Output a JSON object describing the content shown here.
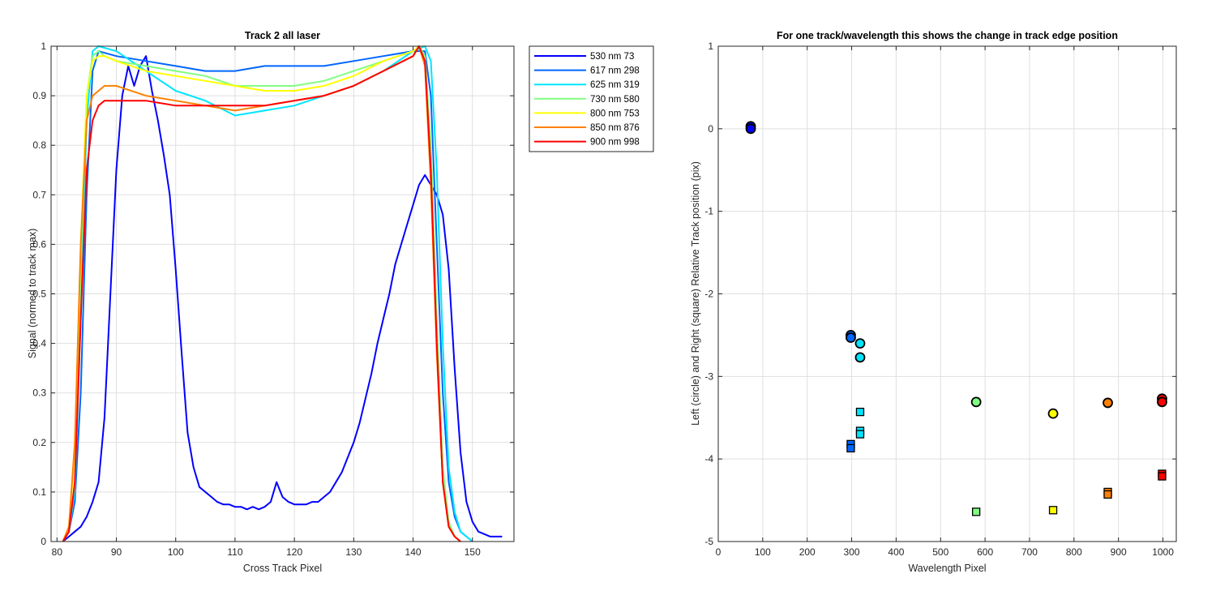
{
  "chart_data": [
    {
      "type": "line",
      "title": "Track 2  all laser",
      "xlabel": "Cross Track Pixel",
      "ylabel": "Signal (normed to track max)",
      "xlim": [
        79,
        157
      ],
      "ylim": [
        0,
        1
      ],
      "xticks": [
        80,
        90,
        100,
        110,
        120,
        130,
        140,
        150
      ],
      "yticks": [
        0,
        0.1,
        0.2,
        0.3,
        0.4,
        0.5,
        0.6,
        0.7,
        0.8,
        0.9,
        1
      ],
      "grid": true,
      "legend_position": "outside-top-right",
      "series": [
        {
          "name": "530 nm 73",
          "color": "#0000ff",
          "x": [
            81,
            82,
            83,
            84,
            85,
            86,
            87,
            88,
            89,
            90,
            91,
            92,
            93,
            94,
            95,
            96,
            97,
            98,
            99,
            100,
            101,
            102,
            103,
            104,
            105,
            106,
            107,
            108,
            109,
            110,
            111,
            112,
            113,
            114,
            115,
            116,
            117,
            118,
            119,
            120,
            121,
            122,
            123,
            124,
            125,
            126,
            127,
            128,
            129,
            130,
            131,
            132,
            133,
            134,
            135,
            136,
            137,
            138,
            139,
            140,
            141,
            142,
            143,
            144,
            145,
            146,
            147,
            148,
            149,
            150,
            151,
            152,
            153,
            154,
            155
          ],
          "y": [
            0.0,
            0.01,
            0.02,
            0.03,
            0.05,
            0.08,
            0.12,
            0.25,
            0.5,
            0.75,
            0.9,
            0.96,
            0.92,
            0.96,
            0.98,
            0.91,
            0.85,
            0.78,
            0.7,
            0.55,
            0.38,
            0.22,
            0.15,
            0.11,
            0.1,
            0.09,
            0.08,
            0.075,
            0.075,
            0.07,
            0.07,
            0.065,
            0.07,
            0.065,
            0.07,
            0.08,
            0.12,
            0.09,
            0.08,
            0.075,
            0.075,
            0.075,
            0.08,
            0.08,
            0.09,
            0.1,
            0.12,
            0.14,
            0.17,
            0.2,
            0.24,
            0.29,
            0.34,
            0.4,
            0.45,
            0.5,
            0.56,
            0.6,
            0.64,
            0.68,
            0.72,
            0.74,
            0.72,
            0.7,
            0.66,
            0.55,
            0.35,
            0.18,
            0.08,
            0.04,
            0.02,
            0.015,
            0.01,
            0.01,
            0.01
          ]
        },
        {
          "name": "617 nm 298",
          "color": "#0066ff",
          "x": [
            81,
            82,
            83,
            84,
            85,
            86,
            87,
            90,
            95,
            100,
            105,
            110,
            115,
            120,
            125,
            130,
            135,
            140,
            142,
            143,
            144,
            145,
            146,
            147,
            148,
            149,
            150
          ],
          "y": [
            0.0,
            0.02,
            0.08,
            0.3,
            0.7,
            0.95,
            0.99,
            0.98,
            0.97,
            0.96,
            0.95,
            0.95,
            0.96,
            0.96,
            0.96,
            0.97,
            0.98,
            0.99,
            0.99,
            0.9,
            0.6,
            0.3,
            0.12,
            0.05,
            0.02,
            0.01,
            0.0
          ]
        },
        {
          "name": "625 nm 319",
          "color": "#00e5ff",
          "x": [
            81,
            82,
            83,
            84,
            85,
            86,
            87,
            90,
            95,
            100,
            105,
            110,
            115,
            120,
            125,
            130,
            135,
            140,
            142,
            143,
            144,
            145,
            146,
            147,
            148,
            149,
            150
          ],
          "y": [
            0.0,
            0.02,
            0.1,
            0.45,
            0.85,
            0.99,
            1.0,
            0.99,
            0.95,
            0.91,
            0.89,
            0.86,
            0.87,
            0.88,
            0.9,
            0.92,
            0.95,
            0.99,
            1.0,
            0.97,
            0.75,
            0.4,
            0.15,
            0.06,
            0.02,
            0.01,
            0.0
          ]
        },
        {
          "name": "730 nm 580",
          "color": "#80ff80",
          "x": [
            81,
            82,
            83,
            84,
            85,
            86,
            87,
            88,
            90,
            95,
            100,
            105,
            110,
            115,
            120,
            125,
            130,
            135,
            140,
            141,
            142,
            143,
            144,
            145,
            146,
            147,
            148
          ],
          "y": [
            0.0,
            0.02,
            0.12,
            0.55,
            0.9,
            0.98,
            0.99,
            0.98,
            0.97,
            0.96,
            0.95,
            0.94,
            0.92,
            0.92,
            0.92,
            0.93,
            0.95,
            0.97,
            0.99,
            1.0,
            0.98,
            0.8,
            0.45,
            0.15,
            0.04,
            0.01,
            0.0
          ]
        },
        {
          "name": "800 nm 753",
          "color": "#ffff00",
          "x": [
            81,
            82,
            83,
            84,
            85,
            86,
            87,
            88,
            90,
            95,
            100,
            105,
            110,
            115,
            120,
            125,
            130,
            135,
            140,
            141,
            142,
            143,
            144,
            145,
            146,
            147,
            148
          ],
          "y": [
            0.0,
            0.03,
            0.18,
            0.6,
            0.9,
            0.97,
            0.98,
            0.98,
            0.97,
            0.95,
            0.94,
            0.93,
            0.92,
            0.91,
            0.91,
            0.92,
            0.94,
            0.97,
            0.99,
            1.0,
            0.97,
            0.75,
            0.4,
            0.12,
            0.03,
            0.01,
            0.0
          ]
        },
        {
          "name": "850 nm 876",
          "color": "#ff8000",
          "x": [
            81,
            82,
            83,
            84,
            85,
            86,
            87,
            88,
            90,
            95,
            100,
            105,
            110,
            115,
            120,
            125,
            130,
            135,
            140,
            141,
            142,
            143,
            144,
            145,
            146,
            147,
            148
          ],
          "y": [
            0.0,
            0.03,
            0.2,
            0.6,
            0.85,
            0.9,
            0.91,
            0.92,
            0.92,
            0.9,
            0.89,
            0.88,
            0.87,
            0.88,
            0.89,
            0.9,
            0.92,
            0.95,
            0.98,
            1.0,
            0.96,
            0.72,
            0.38,
            0.12,
            0.03,
            0.01,
            0.0
          ]
        },
        {
          "name": "900 nm 998",
          "color": "#ff0000",
          "x": [
            81,
            82,
            83,
            84,
            85,
            86,
            87,
            88,
            90,
            95,
            100,
            105,
            110,
            115,
            120,
            125,
            130,
            135,
            140,
            141,
            142,
            143,
            144,
            145,
            146,
            147,
            148
          ],
          "y": [
            0.0,
            0.02,
            0.12,
            0.45,
            0.75,
            0.85,
            0.88,
            0.89,
            0.89,
            0.89,
            0.88,
            0.88,
            0.88,
            0.88,
            0.89,
            0.9,
            0.92,
            0.95,
            0.98,
            1.0,
            0.97,
            0.75,
            0.4,
            0.12,
            0.03,
            0.01,
            0.0
          ]
        }
      ]
    },
    {
      "type": "scatter",
      "title": "For one track/wavelength this shows the change in track edge position",
      "xlabel": "Wavelength Pixel",
      "ylabel": "Left (circle) and Right (square) Relative Track position (pix)",
      "xlim": [
        0,
        1030
      ],
      "ylim": [
        -5,
        1
      ],
      "xticks": [
        0,
        100,
        200,
        300,
        400,
        500,
        600,
        700,
        800,
        900,
        1000
      ],
      "yticks": [
        -5,
        -4,
        -3,
        -2,
        -1,
        0,
        1
      ],
      "grid": true,
      "series": [
        {
          "marker": "circle",
          "points": [
            {
              "x": 73,
              "y": 0.03,
              "color": "#0000ff"
            },
            {
              "x": 73,
              "y": 0.0,
              "color": "#0000ff"
            },
            {
              "x": 298,
              "y": -2.5,
              "color": "#0066ff"
            },
            {
              "x": 298,
              "y": -2.53,
              "color": "#0066ff"
            },
            {
              "x": 319,
              "y": -2.6,
              "color": "#00e5ff"
            },
            {
              "x": 319,
              "y": -2.77,
              "color": "#00e5ff"
            },
            {
              "x": 580,
              "y": -3.31,
              "color": "#80ff80"
            },
            {
              "x": 753,
              "y": -3.45,
              "color": "#ffff00"
            },
            {
              "x": 876,
              "y": -3.32,
              "color": "#ff8000"
            },
            {
              "x": 998,
              "y": -3.27,
              "color": "#ff0000"
            },
            {
              "x": 998,
              "y": -3.31,
              "color": "#ff0000"
            }
          ]
        },
        {
          "marker": "square",
          "points": [
            {
              "x": 298,
              "y": -3.82,
              "color": "#0066ff"
            },
            {
              "x": 298,
              "y": -3.87,
              "color": "#0066ff"
            },
            {
              "x": 319,
              "y": -3.43,
              "color": "#00e5ff"
            },
            {
              "x": 319,
              "y": -3.66,
              "color": "#00e5ff"
            },
            {
              "x": 319,
              "y": -3.7,
              "color": "#00e5ff"
            },
            {
              "x": 580,
              "y": -4.64,
              "color": "#80ff80"
            },
            {
              "x": 753,
              "y": -4.62,
              "color": "#ffff00"
            },
            {
              "x": 876,
              "y": -4.4,
              "color": "#ff8000"
            },
            {
              "x": 876,
              "y": -4.43,
              "color": "#ff8000"
            },
            {
              "x": 998,
              "y": -4.18,
              "color": "#ff0000"
            },
            {
              "x": 998,
              "y": -4.21,
              "color": "#ff0000"
            }
          ]
        }
      ]
    }
  ]
}
